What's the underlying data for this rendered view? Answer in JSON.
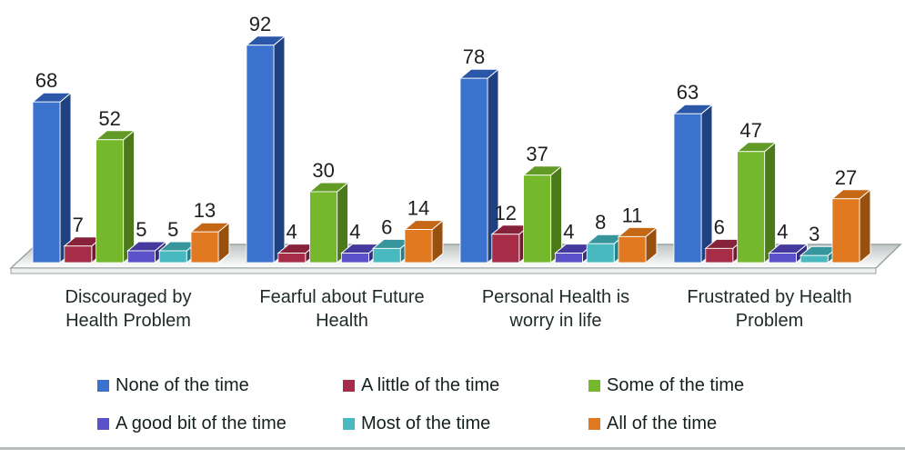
{
  "chart_data": {
    "type": "bar",
    "variant": "3d-clustered-column",
    "title": "",
    "xlabel": "",
    "ylabel": "",
    "value_axis_visible": false,
    "implied_value_range": [
      0,
      100
    ],
    "data_labels_shown": true,
    "legend_position": "bottom",
    "categories": [
      "Discouraged by Health Problem",
      "Fearful about Future Health",
      "Personal Health is worry in life",
      "Frustrated by Health Problem"
    ],
    "series": [
      {
        "name": "None of the time",
        "values": [
          68,
          92,
          78,
          63
        ],
        "color": "#3B72CE",
        "color_side": "#1F4180",
        "color_top": "#2B57A8"
      },
      {
        "name": "A little of the time",
        "values": [
          7,
          4,
          12,
          6
        ],
        "color": "#A62C47",
        "color_side": "#6E1D30",
        "color_top": "#88223A"
      },
      {
        "name": "Some of the time",
        "values": [
          52,
          30,
          37,
          47
        ],
        "color": "#76B82C",
        "color_side": "#4C7A1B",
        "color_top": "#619A24"
      },
      {
        "name": "A good bit of the time",
        "values": [
          5,
          4,
          4,
          4
        ],
        "color": "#5B51C8",
        "color_side": "#352C80",
        "color_top": "#45399E"
      },
      {
        "name": "Most of the time",
        "values": [
          5,
          6,
          8,
          3
        ],
        "color": "#49B9C0",
        "color_side": "#2B7F87",
        "color_top": "#37959C"
      },
      {
        "name": "All of the time",
        "values": [
          13,
          14,
          11,
          27
        ],
        "color": "#E0791F",
        "color_side": "#98500F",
        "color_top": "#C56816"
      }
    ],
    "legend_rows": [
      [
        0,
        1,
        2
      ],
      [
        3,
        4,
        5
      ]
    ],
    "floor_colors": {
      "back": "#c0c5c6",
      "front": "#ffffff",
      "outline": "#9aa3a3",
      "edge_fill": "#eef0f0"
    }
  },
  "page": {
    "bottom_border_color": "#b7bcbe"
  }
}
